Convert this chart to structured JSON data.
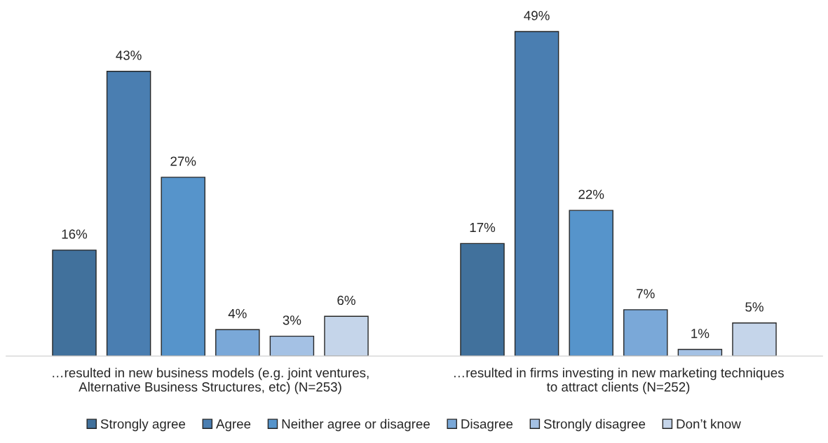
{
  "chart_data": {
    "type": "bar",
    "categories": [
      "…resulted in new business models (e.g. joint ventures,\nAlternative Business Structures, etc) (N=253)",
      "…resulted in firms investing in new marketing techniques\nto attract clients (N=252)"
    ],
    "series": [
      {
        "name": "Strongly agree",
        "color": "#41719c",
        "values": [
          16,
          17
        ],
        "value_labels": [
          "16%",
          "17%"
        ]
      },
      {
        "name": "Agree",
        "color": "#4a7eb1",
        "values": [
          43,
          49
        ],
        "value_labels": [
          "43%",
          "49%"
        ]
      },
      {
        "name": "Neither agree or disagree",
        "color": "#5694cb",
        "values": [
          27,
          22
        ],
        "value_labels": [
          "27%",
          "22%"
        ]
      },
      {
        "name": "Disagree",
        "color": "#7aa8d8",
        "values": [
          4,
          7
        ],
        "value_labels": [
          "4%",
          "7%"
        ]
      },
      {
        "name": "Strongly disagree",
        "color": "#a4c1e4",
        "values": [
          3,
          1
        ],
        "value_labels": [
          "3%",
          "1%"
        ]
      },
      {
        "name": "Don’t know",
        "color": "#c5d5ea",
        "values": [
          6,
          5
        ],
        "value_labels": [
          "6%",
          "5%"
        ]
      }
    ],
    "legend": "bottom",
    "tick_labels": "x"
  }
}
